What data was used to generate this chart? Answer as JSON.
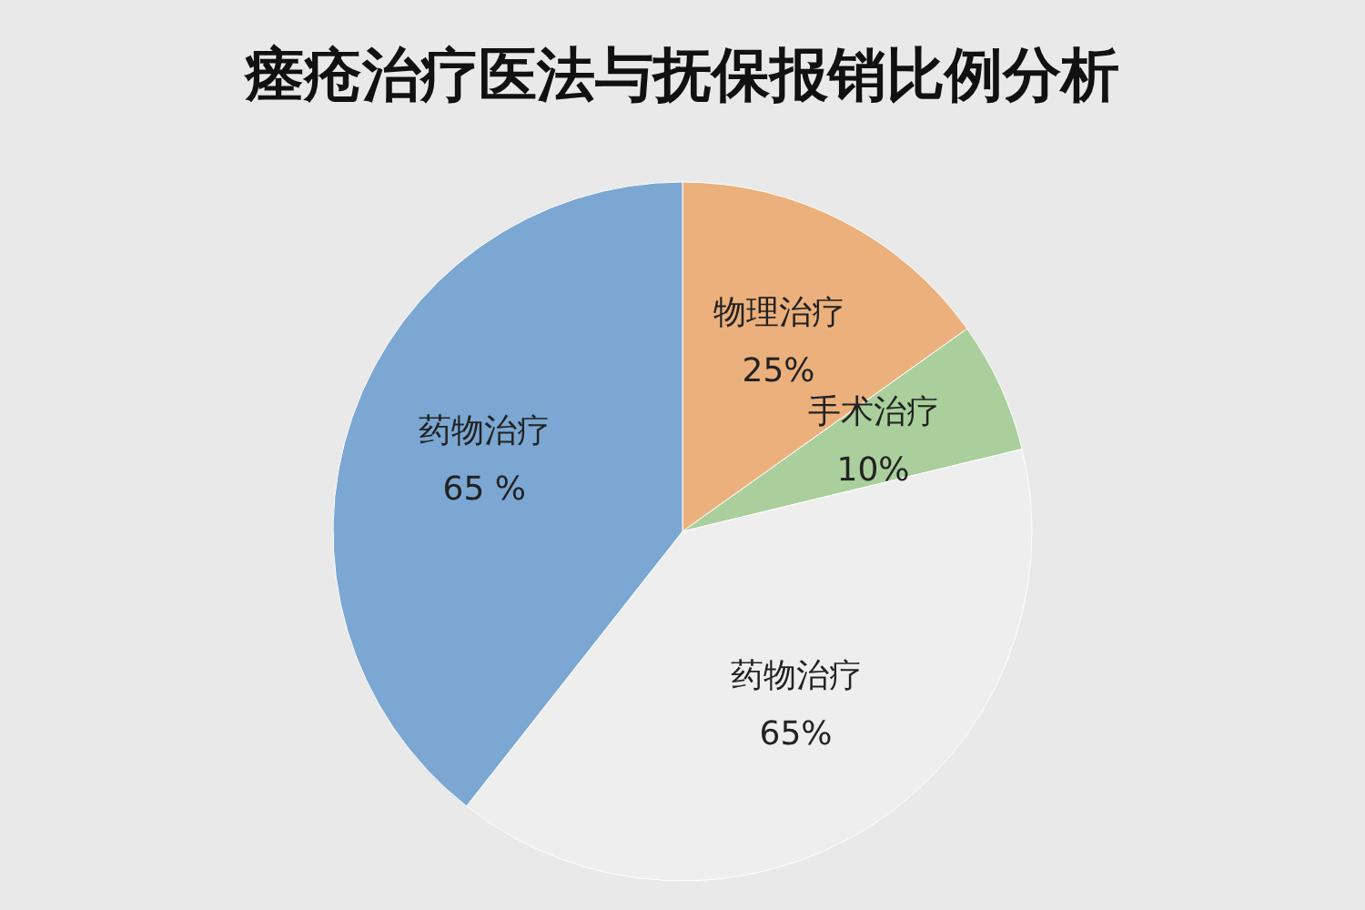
{
  "chart_data": {
    "type": "pie",
    "title": "瘗疮治疗医法与抚保报销比例分析",
    "categories": [
      "物理治疗",
      "手术治疗",
      "药物治疗",
      "药物治疗"
    ],
    "values": [
      25,
      10,
      65,
      65
    ],
    "value_labels": [
      "25%",
      "10%",
      "65%",
      "65 %"
    ],
    "colors": [
      "#ebb07c",
      "#aacf9c",
      "#eeeeee",
      "#7ba7d2"
    ]
  }
}
